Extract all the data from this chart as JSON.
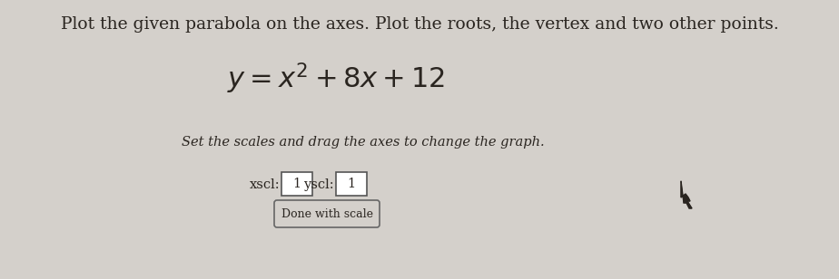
{
  "background_color": "#d4d0cb",
  "title_line": "Plot the given parabola on the axes. Plot the roots, the vertex and two other points.",
  "title_fontsize": 13.5,
  "equation_fontsize": 22,
  "subtitle": "Set the scales and drag the axes to change the graph.",
  "subtitle_fontsize": 10.5,
  "xscl_label": "xscl:",
  "xscl_value": "1",
  "yscl_label": "yscl:",
  "yscl_value": "1",
  "button_label": "Done with scale",
  "label_fontsize": 10.5,
  "button_fontsize": 9,
  "text_color": "#2a2520"
}
